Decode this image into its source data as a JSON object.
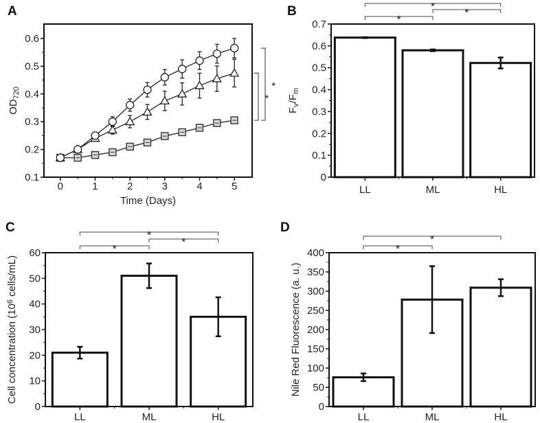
{
  "chart_data": [
    {
      "panel": "A",
      "type": "line",
      "x": [
        0,
        0.5,
        1,
        1.5,
        2,
        2.5,
        3,
        3.5,
        4,
        4.5,
        5
      ],
      "series": [
        {
          "name": "circle",
          "marker": "circle",
          "values": [
            0.17,
            0.2,
            0.25,
            0.3,
            0.36,
            0.415,
            0.46,
            0.49,
            0.52,
            0.545,
            0.565
          ],
          "errors": [
            0.003,
            0.004,
            0.005,
            0.018,
            0.022,
            0.026,
            0.028,
            0.033,
            0.032,
            0.034,
            0.035
          ]
        },
        {
          "name": "triangle",
          "marker": "triangle",
          "values": [
            0.17,
            0.2,
            0.24,
            0.27,
            0.3,
            0.335,
            0.375,
            0.4,
            0.43,
            0.455,
            0.475
          ],
          "errors": [
            0.003,
            0.004,
            0.006,
            0.015,
            0.022,
            0.027,
            0.035,
            0.04,
            0.045,
            0.046,
            0.05
          ]
        },
        {
          "name": "square",
          "marker": "square",
          "values": [
            0.17,
            0.17,
            0.18,
            0.19,
            0.21,
            0.225,
            0.248,
            0.262,
            0.278,
            0.295,
            0.305
          ],
          "errors": [
            0.003,
            0.003,
            0.004,
            0.005,
            0.005,
            0.005,
            0.006,
            0.006,
            0.006,
            0.008,
            0.01
          ]
        }
      ],
      "xlabel": "Time (Days)",
      "ylabel": [
        {
          "t": "OD"
        },
        {
          "t": "720",
          "sub": true
        }
      ],
      "xlim": [
        -0.47,
        5.51
      ],
      "ylim": [
        0.1,
        0.652
      ],
      "xticks": [
        0,
        1,
        2,
        3,
        4,
        5
      ],
      "xtick_labels": [
        "0",
        "1",
        "2",
        "3",
        "4",
        "5"
      ],
      "yticks": [
        0.1,
        0.2,
        0.3,
        0.4,
        0.5,
        0.6
      ],
      "ytick_labels": [
        "0.1",
        "0.2",
        "0.3",
        "0.4",
        "0.5",
        "0.6"
      ],
      "significance": [
        {
          "from": "circle",
          "to": "square",
          "label": "*"
        },
        {
          "from": "triangle",
          "to": "square",
          "label": "*"
        }
      ]
    },
    {
      "panel": "B",
      "type": "bar",
      "categories": [
        "LL",
        "ML",
        "HL"
      ],
      "values": [
        0.638,
        0.58,
        0.522
      ],
      "errors": [
        0.002,
        0.004,
        0.025
      ],
      "ylabel": [
        {
          "t": "F"
        },
        {
          "t": "v",
          "sub": true
        },
        {
          "t": "/F"
        },
        {
          "t": "m",
          "sub": true
        }
      ],
      "ylim": [
        0,
        0.7
      ],
      "yticks": [
        0,
        0.1,
        0.2,
        0.3,
        0.4,
        0.5,
        0.6,
        0.7
      ],
      "ytick_labels": [
        "0",
        "0.1",
        "0.2",
        "0.3",
        "0.4",
        "0.5",
        "0.6",
        "0.7"
      ],
      "significance": [
        {
          "from": 0,
          "to": 1,
          "label": "*"
        },
        {
          "from": 1,
          "to": 2,
          "label": "*"
        },
        {
          "from": 0,
          "to": 2,
          "label": "*"
        }
      ]
    },
    {
      "panel": "C",
      "type": "bar",
      "categories": [
        "LL",
        "ML",
        "HL"
      ],
      "values": [
        21,
        51,
        35
      ],
      "errors": [
        2.3,
        4.8,
        7.6
      ],
      "ylabel": [
        {
          "t": "Cell concentration (10"
        },
        {
          "t": "6",
          "sup": true
        },
        {
          "t": " cells/mL)"
        }
      ],
      "ylim": [
        0,
        60
      ],
      "yticks": [
        0,
        10,
        20,
        30,
        40,
        50,
        60
      ],
      "ytick_labels": [
        "0",
        "10",
        "20",
        "30",
        "40",
        "50",
        "60"
      ],
      "significance": [
        {
          "from": 0,
          "to": 1,
          "label": "*"
        },
        {
          "from": 1,
          "to": 2,
          "label": "*"
        },
        {
          "from": 0,
          "to": 2,
          "label": "*"
        }
      ]
    },
    {
      "panel": "D",
      "type": "bar",
      "categories": [
        "LL",
        "ML",
        "HL"
      ],
      "values": [
        76,
        278,
        309
      ],
      "errors": [
        10,
        87,
        22
      ],
      "ylabel": [
        {
          "t": "Nile Red Fluorescence (a. u.)"
        }
      ],
      "ylim": [
        0,
        400
      ],
      "yticks": [
        0,
        50,
        100,
        150,
        200,
        250,
        300,
        350,
        400
      ],
      "ytick_labels": [
        "0",
        "50",
        "100",
        "150",
        "200",
        "250",
        "300",
        "350",
        "400"
      ],
      "significance": [
        {
          "from": 0,
          "to": 1,
          "label": "*"
        },
        {
          "from": 0,
          "to": 2,
          "label": "*"
        }
      ]
    }
  ]
}
